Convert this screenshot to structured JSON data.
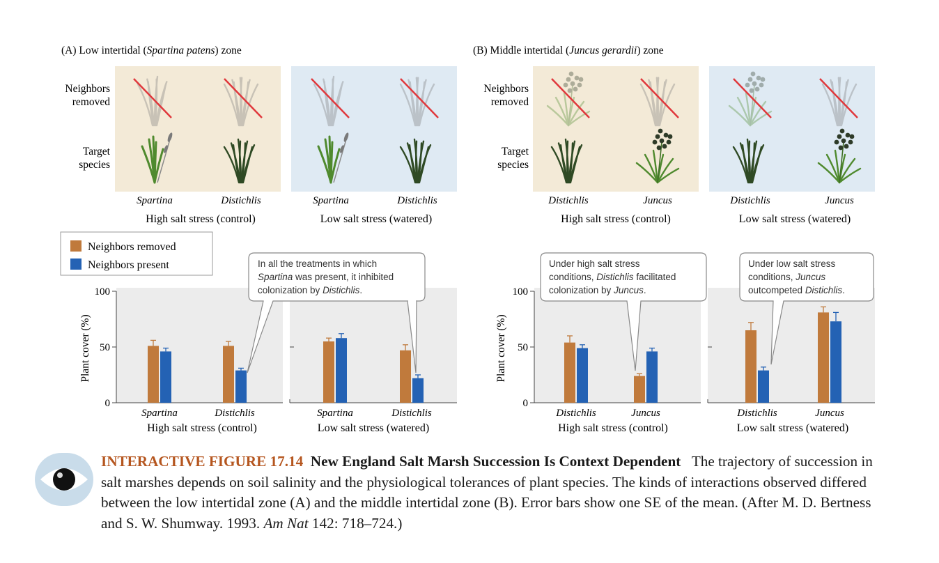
{
  "panels": {
    "A": {
      "title_pre": "(A) Low intertidal (",
      "title_species": "Spartina patens",
      "title_post": ") zone"
    },
    "B": {
      "title_pre": "(B) Middle intertidal (",
      "title_species": "Juncus gerardii",
      "title_post": ") zone"
    }
  },
  "row_labels": {
    "neighbors_removed_1": "Neighbors",
    "neighbors_removed_2": "removed",
    "target_species_1": "Target",
    "target_species_2": "species"
  },
  "conditions": {
    "high": "High salt stress (control)",
    "low": "Low salt stress (watered)"
  },
  "species": {
    "spartina": "Spartina",
    "distichlis": "Distichlis",
    "juncus": "Juncus"
  },
  "legend": {
    "removed": "Neighbors removed",
    "present": "Neighbors present"
  },
  "colors": {
    "removed": "#c07a3c",
    "present": "#2462b4",
    "high_bg": "#f3ead7",
    "low_bg": "#dfeaf3",
    "plot_bg": "#ececec",
    "removed_x": "#e0383c"
  },
  "callouts": {
    "A": {
      "l1": "In all the treatments in which",
      "l2a": "Spartina",
      "l2b": " was present, it inhibited",
      "l3a": "colonization by ",
      "l3b": "Distichlis",
      "l3c": "."
    },
    "B1": {
      "l1": "Under high salt stress",
      "l2a": "conditions, ",
      "l2b": "Distichlis",
      "l2c": " facilitated",
      "l3a": "colonization by ",
      "l3b": "Juncus",
      "l3c": "."
    },
    "B2": {
      "l1": "Under low salt stress",
      "l2a": "conditions, ",
      "l2b": "Juncus",
      "l3a": "outcompeted ",
      "l3b": "Distichlis",
      "l3c": "."
    }
  },
  "caption": {
    "label": "INTERACTIVE FIGURE 17.14",
    "title": "New England Salt Marsh Succession Is Context Dependent",
    "body": "The trajectory of succession in salt marshes depends on soil salinity and the physiological tolerances of plant species. The kinds of interactions observed differed between the low intertidal zone (A) and the middle intertidal zone (B). Error bars show one SE of the mean. (After M. D. Bertness and S. W. Shumway. 1993. ",
    "journal": "Am Nat",
    "tail": " 142: 718–724.)"
  },
  "chart_data": [
    {
      "type": "bar",
      "panel": "A",
      "ylabel": "Plant cover (%)",
      "ylim": [
        0,
        100
      ],
      "yticks": [
        0,
        50,
        100
      ],
      "groups": [
        {
          "condition": "High salt stress (control)",
          "categories": [
            "Spartina",
            "Distichlis"
          ],
          "series": [
            {
              "name": "Neighbors removed",
              "values": [
                51,
                51
              ],
              "se": [
                5,
                4
              ]
            },
            {
              "name": "Neighbors present",
              "values": [
                46,
                29
              ],
              "se": [
                3,
                2
              ]
            }
          ]
        },
        {
          "condition": "Low salt stress (watered)",
          "categories": [
            "Spartina",
            "Distichlis"
          ],
          "series": [
            {
              "name": "Neighbors removed",
              "values": [
                55,
                47
              ],
              "se": [
                3,
                5
              ]
            },
            {
              "name": "Neighbors present",
              "values": [
                58,
                22
              ],
              "se": [
                4,
                3
              ]
            }
          ]
        }
      ]
    },
    {
      "type": "bar",
      "panel": "B",
      "ylabel": "Plant cover (%)",
      "ylim": [
        0,
        100
      ],
      "yticks": [
        0,
        50,
        100
      ],
      "groups": [
        {
          "condition": "High salt stress (control)",
          "categories": [
            "Distichlis",
            "Juncus"
          ],
          "series": [
            {
              "name": "Neighbors removed",
              "values": [
                54,
                24
              ],
              "se": [
                6,
                2
              ]
            },
            {
              "name": "Neighbors present",
              "values": [
                49,
                46
              ],
              "se": [
                3,
                3
              ]
            }
          ]
        },
        {
          "condition": "Low salt stress (watered)",
          "categories": [
            "Distichlis",
            "Juncus"
          ],
          "series": [
            {
              "name": "Neighbors removed",
              "values": [
                65,
                81
              ],
              "se": [
                7,
                5
              ]
            },
            {
              "name": "Neighbors present",
              "values": [
                29,
                73
              ],
              "se": [
                3,
                8
              ]
            }
          ]
        }
      ]
    }
  ]
}
